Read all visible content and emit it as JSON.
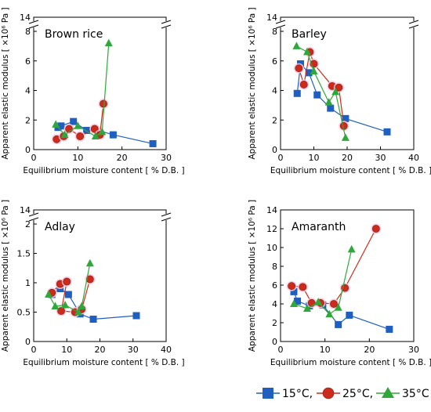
{
  "chart_data": [
    {
      "type": "scatter",
      "title": "Brown rice",
      "xlabel": "Equilibrium moisture content [ % D.B. ]",
      "ylabel": "Apparent elastic modulus [ ×10⁶ Pa ]",
      "xlim": [
        0,
        30
      ],
      "ylim": [
        0,
        14
      ],
      "axis_break": {
        "low": [
          0,
          8
        ],
        "high_tick": 14
      },
      "x_ticks": [
        "0",
        "10",
        "20",
        "30"
      ],
      "y_ticks": [
        "0",
        "2",
        "4",
        "6",
        "8",
        "14"
      ],
      "series": [
        {
          "name": "15°C",
          "marker": "square",
          "color": "#1f5fbf",
          "points": [
            [
              5.5,
              1.5
            ],
            [
              6.2,
              1.6
            ],
            [
              9.0,
              1.9
            ],
            [
              12.0,
              1.3
            ],
            [
              14.0,
              1.35
            ],
            [
              18.0,
              1.0
            ],
            [
              27.0,
              0.4
            ]
          ]
        },
        {
          "name": "25°C",
          "marker": "circle",
          "color": "#cc2a1a",
          "points": [
            [
              5.2,
              0.7
            ],
            [
              6.8,
              0.9
            ],
            [
              8.0,
              1.4
            ],
            [
              10.5,
              0.9
            ],
            [
              13.8,
              1.4
            ],
            [
              15.0,
              1.0
            ],
            [
              15.8,
              3.1
            ]
          ]
        },
        {
          "name": "35°C",
          "marker": "triangle",
          "color": "#2ea83a",
          "points": [
            [
              5.0,
              1.7
            ],
            [
              7.0,
              1.0
            ],
            [
              10.0,
              1.6
            ],
            [
              14.0,
              0.9
            ],
            [
              15.5,
              1.2
            ],
            [
              17.0,
              7.2
            ]
          ]
        }
      ]
    },
    {
      "type": "scatter",
      "title": "Barley",
      "xlabel": "Equilibrium moisture content [ % D.B. ]",
      "ylabel": "Apparent elastic modulus [ ×10⁶ Pa ]",
      "xlim": [
        0,
        40
      ],
      "ylim": [
        0,
        14
      ],
      "axis_break": {
        "low": [
          0,
          8
        ],
        "high_tick": 14
      },
      "x_ticks": [
        "0",
        "10",
        "20",
        "30",
        "40"
      ],
      "y_ticks": [
        "0",
        "2",
        "4",
        "6",
        "8",
        "14"
      ],
      "series": [
        {
          "name": "15°C",
          "marker": "square",
          "color": "#1f5fbf",
          "points": [
            [
              5.0,
              3.8
            ],
            [
              6.0,
              5.8
            ],
            [
              8.5,
              5.2
            ],
            [
              11.0,
              3.7
            ],
            [
              15.0,
              2.8
            ],
            [
              19.5,
              2.1
            ],
            [
              32.0,
              1.2
            ]
          ]
        },
        {
          "name": "25°C",
          "marker": "circle",
          "color": "#cc2a1a",
          "points": [
            [
              5.5,
              5.5
            ],
            [
              7.0,
              4.4
            ],
            [
              8.8,
              6.6
            ],
            [
              10.0,
              5.8
            ],
            [
              15.5,
              4.3
            ],
            [
              17.5,
              4.2
            ],
            [
              19.0,
              1.6
            ]
          ]
        },
        {
          "name": "35°C",
          "marker": "triangle",
          "color": "#2ea83a",
          "points": [
            [
              4.8,
              7.0
            ],
            [
              8.0,
              6.6
            ],
            [
              10.0,
              5.3
            ],
            [
              14.5,
              3.2
            ],
            [
              16.5,
              3.9
            ],
            [
              19.5,
              0.8
            ]
          ]
        }
      ]
    },
    {
      "type": "scatter",
      "title": "Adlay",
      "xlabel": "Equilibrium moisture content [ % D.B. ]",
      "ylabel": "Apparent elastic modulus [ ×10⁶ Pa ]",
      "xlim": [
        0,
        40
      ],
      "ylim": [
        0,
        14
      ],
      "axis_break": {
        "low": [
          0,
          2
        ],
        "high_tick": 14
      },
      "x_ticks": [
        "0",
        "10",
        "20",
        "30",
        "40"
      ],
      "y_ticks": [
        "0",
        "0.5",
        "1",
        "1.5",
        "2",
        "14"
      ],
      "series": [
        {
          "name": "15°C",
          "marker": "square",
          "color": "#1f5fbf",
          "points": [
            [
              5.5,
              0.8
            ],
            [
              8.0,
              0.9
            ],
            [
              10.5,
              0.8
            ],
            [
              14.0,
              0.47
            ],
            [
              18.0,
              0.38
            ],
            [
              31.0,
              0.44
            ]
          ]
        },
        {
          "name": "25°C",
          "marker": "circle",
          "color": "#cc2a1a",
          "points": [
            [
              5.5,
              0.83
            ],
            [
              8.0,
              0.98
            ],
            [
              10.0,
              1.02
            ],
            [
              8.3,
              0.52
            ],
            [
              12.5,
              0.5
            ],
            [
              14.5,
              0.55
            ],
            [
              17.0,
              1.06
            ]
          ]
        },
        {
          "name": "35°C",
          "marker": "triangle",
          "color": "#2ea83a",
          "points": [
            [
              4.5,
              0.8
            ],
            [
              6.5,
              0.6
            ],
            [
              9.5,
              0.62
            ],
            [
              13.5,
              0.5
            ],
            [
              14.5,
              0.6
            ],
            [
              17.0,
              1.33
            ]
          ]
        }
      ]
    },
    {
      "type": "scatter",
      "title": "Amaranth",
      "xlabel": "Equilibrium moisture content [ % D.B. ]",
      "ylabel": "Apparent elastic modulus [ ×10⁶ Pa ]",
      "xlim": [
        0,
        30
      ],
      "ylim": [
        0,
        14
      ],
      "x_ticks": [
        "0",
        "10",
        "20",
        "30"
      ],
      "y_ticks": [
        "0",
        "2",
        "4",
        "6",
        "8",
        "10",
        "12",
        "14"
      ],
      "series": [
        {
          "name": "15°C",
          "marker": "square",
          "color": "#1f5fbf",
          "points": [
            [
              3.0,
              5.3
            ],
            [
              3.8,
              4.3
            ],
            [
              6.5,
              3.8
            ],
            [
              9.5,
              3.9
            ],
            [
              13.0,
              1.8
            ],
            [
              15.5,
              2.8
            ],
            [
              24.5,
              1.3
            ]
          ]
        },
        {
          "name": "25°C",
          "marker": "circle",
          "color": "#cc2a1a",
          "points": [
            [
              2.5,
              5.9
            ],
            [
              5.0,
              5.8
            ],
            [
              7.0,
              4.1
            ],
            [
              9.0,
              4.1
            ],
            [
              12.0,
              4.0
            ],
            [
              14.5,
              5.7
            ],
            [
              21.5,
              12.0
            ]
          ]
        },
        {
          "name": "35°C",
          "marker": "triangle",
          "color": "#2ea83a",
          "points": [
            [
              3.0,
              4.0
            ],
            [
              6.0,
              3.5
            ],
            [
              8.5,
              4.2
            ],
            [
              11.0,
              2.9
            ],
            [
              13.0,
              3.6
            ],
            [
              16.0,
              9.8
            ]
          ]
        }
      ]
    }
  ],
  "legend": {
    "position": "bottom-right",
    "items": [
      {
        "label": "15°C,",
        "marker": "square",
        "color": "#1f5fbf"
      },
      {
        "label": "25°C,",
        "marker": "circle",
        "color": "#cc2a1a"
      },
      {
        "label": "35°C",
        "marker": "triangle",
        "color": "#2ea83a"
      }
    ]
  }
}
